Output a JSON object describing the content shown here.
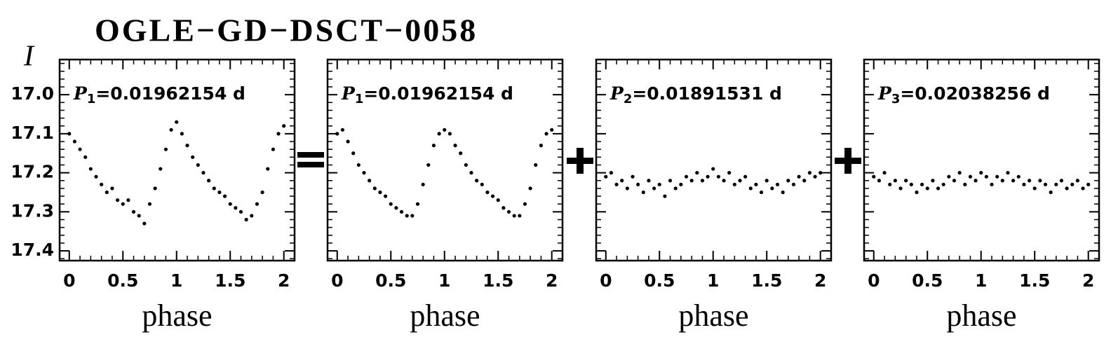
{
  "title": "OGLE−GD−DSCT−0058",
  "y_label": "I",
  "chart_data": [
    {
      "type": "scatter",
      "period_label": {
        "symbol": "P",
        "subscript": "1",
        "text": "=0.01962154 d"
      },
      "x_label": "phase",
      "x": [
        0,
        0.05,
        0.1,
        0.15,
        0.2,
        0.25,
        0.3,
        0.35,
        0.4,
        0.45,
        0.5,
        0.55,
        0.6,
        0.65,
        0.7,
        0.75,
        0.8,
        0.85,
        0.9,
        0.95,
        1,
        1.05,
        1.1,
        1.15,
        1.2,
        1.25,
        1.3,
        1.35,
        1.4,
        1.45,
        1.5,
        1.55,
        1.6,
        1.65,
        1.7,
        1.75,
        1.8,
        1.85,
        1.9,
        1.95,
        2
      ],
      "values": [
        17.1,
        17.12,
        17.14,
        17.16,
        17.19,
        17.21,
        17.23,
        17.25,
        17.24,
        17.27,
        17.28,
        17.27,
        17.3,
        17.31,
        17.33,
        17.28,
        17.24,
        17.19,
        17.14,
        17.09,
        17.07,
        17.1,
        17.13,
        17.16,
        17.18,
        17.2,
        17.22,
        17.24,
        17.25,
        17.26,
        17.28,
        17.29,
        17.3,
        17.32,
        17.31,
        17.28,
        17.25,
        17.19,
        17.14,
        17.1,
        17.08
      ],
      "color": "#000000",
      "xlim": [
        -0.09,
        2.1
      ],
      "ylim": [
        16.91,
        17.425
      ],
      "xticks": [
        0,
        0.5,
        1,
        1.5,
        2
      ],
      "yticks": [
        {
          "value": 17,
          "label": "17.0"
        },
        {
          "value": 17.1,
          "label": "17.1"
        },
        {
          "value": 17.2,
          "label": "17.2"
        },
        {
          "value": 17.3,
          "label": "17.3"
        },
        {
          "value": 17.4,
          "label": "17.4"
        }
      ],
      "ytick_labels": true
    },
    {
      "type": "scatter",
      "period_label": {
        "symbol": "P",
        "subscript": "1",
        "text": "=0.01962154 d"
      },
      "x_label": "phase",
      "x": [
        0,
        0.05,
        0.1,
        0.15,
        0.2,
        0.25,
        0.3,
        0.35,
        0.4,
        0.45,
        0.5,
        0.55,
        0.6,
        0.65,
        0.7,
        0.75,
        0.8,
        0.85,
        0.9,
        0.95,
        1,
        1.05,
        1.1,
        1.15,
        1.2,
        1.25,
        1.3,
        1.35,
        1.4,
        1.45,
        1.5,
        1.55,
        1.6,
        1.65,
        1.7,
        1.75,
        1.8,
        1.85,
        1.9,
        1.95,
        2
      ],
      "values": [
        17.1,
        17.09,
        17.12,
        17.15,
        17.18,
        17.2,
        17.22,
        17.24,
        17.25,
        17.26,
        17.28,
        17.29,
        17.3,
        17.31,
        17.31,
        17.28,
        17.23,
        17.18,
        17.13,
        17.1,
        17.09,
        17.1,
        17.13,
        17.15,
        17.18,
        17.2,
        17.22,
        17.23,
        17.25,
        17.26,
        17.27,
        17.29,
        17.3,
        17.31,
        17.31,
        17.28,
        17.24,
        17.18,
        17.13,
        17.1,
        17.09
      ],
      "color": "#000000",
      "xlim": [
        -0.09,
        2.1
      ],
      "ylim": [
        16.91,
        17.425
      ],
      "xticks": [
        0,
        0.5,
        1,
        1.5,
        2
      ],
      "yticks": [
        17,
        17.1,
        17.2,
        17.3,
        17.4
      ],
      "ytick_labels": false
    },
    {
      "type": "scatter",
      "period_label": {
        "symbol": "P",
        "subscript": "2",
        "text": "=0.01891531 d"
      },
      "x_label": "phase",
      "x": [
        0,
        0.05,
        0.1,
        0.15,
        0.2,
        0.25,
        0.3,
        0.35,
        0.4,
        0.45,
        0.5,
        0.55,
        0.6,
        0.65,
        0.7,
        0.75,
        0.8,
        0.85,
        0.9,
        0.95,
        1,
        1.05,
        1.1,
        1.15,
        1.2,
        1.25,
        1.3,
        1.35,
        1.4,
        1.45,
        1.5,
        1.55,
        1.6,
        1.65,
        1.7,
        1.75,
        1.8,
        1.85,
        1.9,
        1.95,
        2
      ],
      "values": [
        17.21,
        17.2,
        17.23,
        17.22,
        17.24,
        17.21,
        17.23,
        17.25,
        17.22,
        17.24,
        17.23,
        17.26,
        17.22,
        17.24,
        17.23,
        17.21,
        17.22,
        17.2,
        17.22,
        17.21,
        17.19,
        17.21,
        17.22,
        17.2,
        17.23,
        17.22,
        17.21,
        17.24,
        17.23,
        17.25,
        17.22,
        17.24,
        17.23,
        17.25,
        17.22,
        17.23,
        17.21,
        17.22,
        17.2,
        17.21,
        17.2
      ],
      "color": "#000000",
      "xlim": [
        -0.09,
        2.1
      ],
      "ylim": [
        16.91,
        17.425
      ],
      "xticks": [
        0,
        0.5,
        1,
        1.5,
        2
      ],
      "yticks": [
        17,
        17.1,
        17.2,
        17.3,
        17.4
      ],
      "ytick_labels": false
    },
    {
      "type": "scatter",
      "period_label": {
        "symbol": "P",
        "subscript": "3",
        "text": "=0.02038256 d"
      },
      "x_label": "phase",
      "x": [
        0,
        0.05,
        0.1,
        0.15,
        0.2,
        0.25,
        0.3,
        0.35,
        0.4,
        0.45,
        0.5,
        0.55,
        0.6,
        0.65,
        0.7,
        0.75,
        0.8,
        0.85,
        0.9,
        0.95,
        1,
        1.05,
        1.1,
        1.15,
        1.2,
        1.25,
        1.3,
        1.35,
        1.4,
        1.45,
        1.5,
        1.55,
        1.6,
        1.65,
        1.7,
        1.75,
        1.8,
        1.85,
        1.9,
        1.95,
        2
      ],
      "values": [
        17.21,
        17.22,
        17.2,
        17.23,
        17.22,
        17.24,
        17.22,
        17.23,
        17.25,
        17.23,
        17.24,
        17.22,
        17.24,
        17.23,
        17.21,
        17.22,
        17.2,
        17.23,
        17.21,
        17.22,
        17.2,
        17.21,
        17.23,
        17.21,
        17.22,
        17.2,
        17.22,
        17.21,
        17.23,
        17.22,
        17.24,
        17.22,
        17.23,
        17.25,
        17.23,
        17.22,
        17.24,
        17.23,
        17.22,
        17.24,
        17.23
      ],
      "color": "#000000",
      "xlim": [
        -0.09,
        2.1
      ],
      "ylim": [
        16.91,
        17.425
      ],
      "xticks": [
        0,
        0.5,
        1,
        1.5,
        2
      ],
      "yticks": [
        17,
        17.1,
        17.2,
        17.3,
        17.4
      ],
      "ytick_labels": false
    }
  ]
}
